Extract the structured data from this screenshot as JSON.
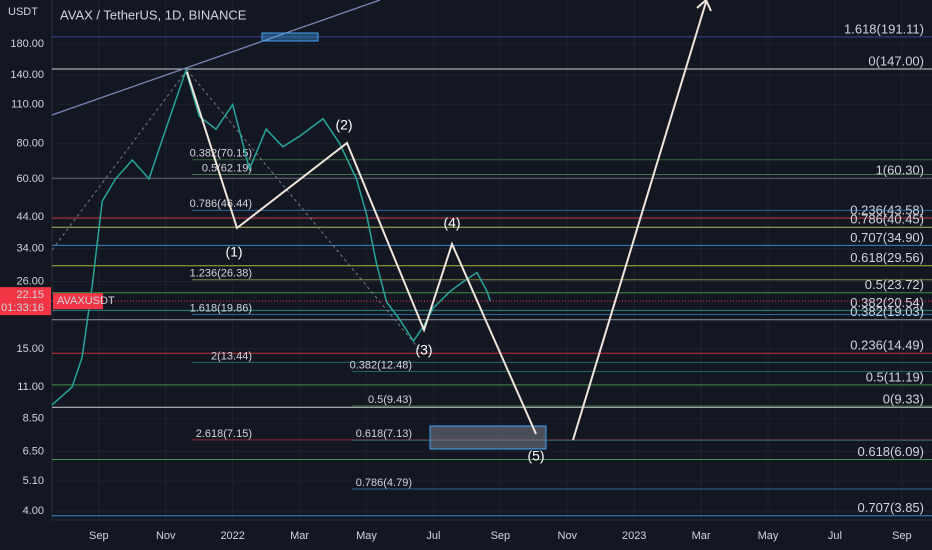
{
  "chart_data": {
    "type": "line",
    "title": "AVAX / TetherUS, 1D, BINANCE",
    "y_unit": "USDT",
    "log_scale": true,
    "ylim": [
      3.72,
      258
    ],
    "yticks": [
      {
        "value": 4,
        "label": "4.00"
      },
      {
        "value": 5.1,
        "label": "5.10"
      },
      {
        "value": 6.5,
        "label": "6.50"
      },
      {
        "value": 8.5,
        "label": "8.50"
      },
      {
        "value": 11,
        "label": "11.00"
      },
      {
        "value": 15,
        "label": "15.00"
      },
      {
        "value": 26,
        "label": "26.00"
      },
      {
        "value": 34,
        "label": "34.00"
      },
      {
        "value": 44,
        "label": "44.00"
      },
      {
        "value": 60,
        "label": "60.00"
      },
      {
        "value": 80,
        "label": "80.00"
      },
      {
        "value": 110,
        "label": "110.00"
      },
      {
        "value": 140,
        "label": "140.00"
      },
      {
        "value": 180,
        "label": "180.00"
      }
    ],
    "xlim": [
      0.6,
      26.9
    ],
    "xticks": [
      {
        "value": 2,
        "label": "Sep"
      },
      {
        "value": 4,
        "label": "Nov"
      },
      {
        "value": 6,
        "label": "2022"
      },
      {
        "value": 8,
        "label": "Mar"
      },
      {
        "value": 10,
        "label": "May"
      },
      {
        "value": 12,
        "label": "Jul"
      },
      {
        "value": 14,
        "label": "Sep"
      },
      {
        "value": 16,
        "label": "Nov"
      },
      {
        "value": 18,
        "label": "2023"
      },
      {
        "value": 20,
        "label": "Mar"
      },
      {
        "value": 22,
        "label": "May"
      },
      {
        "value": 24,
        "label": "Jul"
      },
      {
        "value": 26,
        "label": "Sep"
      }
    ],
    "series": [
      {
        "name": "AVAXUSDT",
        "color": "#26a69a",
        "x": [
          0.6,
          1.2,
          1.5,
          1.8,
          2.1,
          2.5,
          3,
          3.5,
          4,
          4.6,
          5,
          5.5,
          6,
          6.5,
          7,
          7.5,
          8,
          8.7,
          9.2,
          9.7,
          10,
          10.3,
          10.6,
          11,
          11.4,
          11.7,
          12,
          12.5,
          12.9,
          13.3,
          13.6,
          13.7
        ],
        "values": [
          9.5,
          11,
          14,
          25,
          50,
          60,
          70,
          60,
          90,
          145,
          100,
          90,
          110,
          65,
          90,
          78,
          85,
          98,
          80,
          60,
          45,
          30,
          22,
          19,
          16,
          18,
          21,
          24,
          26,
          28,
          24,
          22.15
        ]
      }
    ],
    "last_price": {
      "label": "22.15",
      "value": 22.15,
      "countdown": "01:33:16",
      "color": "#f23645"
    },
    "fib_levels_right": [
      {
        "label": "1.618(191.11)",
        "value": 191.11,
        "color": "#3f51b5"
      },
      {
        "label": "0(147.00)",
        "value": 147,
        "color": "#ffffff"
      },
      {
        "label": "1(60.30)",
        "value": 60.3,
        "color": "#787b86"
      },
      {
        "label": "0.236(43.58)",
        "value": 43.58,
        "color": "#f23645"
      },
      {
        "label": "0.786(40.45)",
        "value": 40.45,
        "color": "#e0e060"
      },
      {
        "label": "0.707(34.90)",
        "value": 34.9,
        "color": "#42a5f5"
      },
      {
        "label": "0.618(29.56)",
        "value": 29.56,
        "color": "#cddc39"
      },
      {
        "label": "0.5(23.72)",
        "value": 23.72,
        "color": "#4caf50"
      },
      {
        "label": "0.382(20.54)",
        "value": 20.54,
        "color": "#26a69a"
      },
      {
        "label": "0.382(19.03)",
        "value": 19.03,
        "color": "#b2b5be"
      },
      {
        "label": "0.236(14.49)",
        "value": 14.49,
        "color": "#f23645"
      },
      {
        "label": "0.5(11.19)",
        "value": 11.19,
        "color": "#4caf50"
      },
      {
        "label": "0(9.33)",
        "value": 9.33,
        "color": "#ffffff"
      },
      {
        "label": "0.618(6.09)",
        "value": 6.09,
        "color": "#4caf50"
      },
      {
        "label": "0.707(3.85)",
        "value": 3.85,
        "color": "#42a5f5"
      }
    ],
    "fib_levels_left": [
      {
        "label": "0.382(70.15)",
        "value": 70.15,
        "color": "#4caf50"
      },
      {
        "label": "0.5(62.19)",
        "value": 62.19,
        "color": "#66bb6a"
      },
      {
        "label": "0.786(46.44)",
        "value": 46.44,
        "color": "#42a5f5"
      },
      {
        "label": "1.236(26.38)",
        "value": 26.38,
        "color": "#e0e060"
      },
      {
        "label": "1.618(19.86)",
        "value": 19.86,
        "color": "#42a5f5"
      },
      {
        "label": "2(13.44)",
        "value": 13.44,
        "color": "#26a69a"
      },
      {
        "label": "2.618(7.15)",
        "value": 7.15,
        "color": "#f23645"
      },
      {
        "label": "0.382(12.48)",
        "value": 12.48,
        "color": "#26a69a"
      },
      {
        "label": "0.5(9.43)",
        "value": 9.43,
        "color": "#4caf50"
      },
      {
        "label": "0.618(7.13)",
        "value": 7.13,
        "color": "#26a69a"
      },
      {
        "label": "0.786(4.79)",
        "value": 4.79,
        "color": "#42a5f5"
      }
    ],
    "wave_labels": [
      "(1)",
      "(2)",
      "(3)",
      "(4)",
      "(5)"
    ]
  }
}
